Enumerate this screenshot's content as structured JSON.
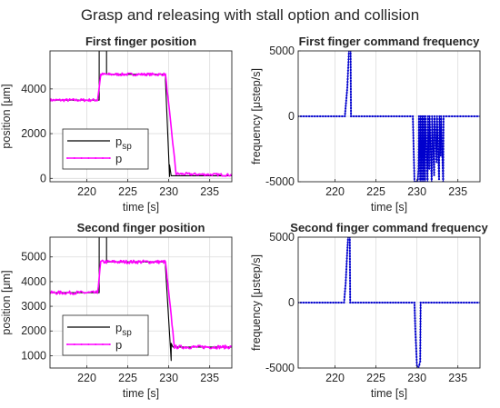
{
  "figure_title": "Grasp and releasing with stall option and collision",
  "chart_data": [
    {
      "id": "p1",
      "type": "line",
      "title": "First finger position",
      "xlabel": "time [s]",
      "ylabel": "position [μm]",
      "xlim": [
        215.5,
        237.7
      ],
      "ylim": [
        -150,
        5700
      ],
      "xticks": [
        220,
        225,
        230,
        235
      ],
      "yticks": [
        0,
        2000,
        4000
      ],
      "grid": true,
      "legend": {
        "position": "lower-left",
        "entries": [
          {
            "label": "p",
            "sub": "sp",
            "color": "#000000",
            "marker": false
          },
          {
            "label": "p",
            "sub": "",
            "color": "#ff00ff",
            "marker": true
          }
        ]
      },
      "series": [
        {
          "name": "psp",
          "color": "#000000",
          "noise": 0,
          "x": [
            215.5,
            221.5,
            221.5,
            222.4,
            222.4,
            229.6,
            229.6,
            230.1,
            230.1,
            230.3,
            237.7
          ],
          "y": [
            3500,
            3500,
            5700,
            5700,
            4650,
            4650,
            4400,
            80,
            600,
            120,
            120
          ]
        },
        {
          "name": "p",
          "color": "#ff00ff",
          "noise": 60,
          "x": [
            215.5,
            221.3,
            221.7,
            222.2,
            229.6,
            230.9,
            231.2,
            237.7
          ],
          "y": [
            3500,
            3500,
            4650,
            4650,
            4650,
            200,
            200,
            150
          ]
        }
      ]
    },
    {
      "id": "f1",
      "type": "line",
      "title": "First finger command frequency",
      "xlabel": "time [s]",
      "ylabel": "frequency [μstep/s]",
      "xlim": [
        215.5,
        237.7
      ],
      "ylim": [
        -5000,
        5000
      ],
      "xticks": [
        220,
        225,
        230,
        235
      ],
      "yticks": [
        -5000,
        0,
        5000
      ],
      "grid": true,
      "series": [
        {
          "name": "frequency",
          "color": "#0000cd",
          "noise": 0,
          "x": [
            215.5,
            221.2,
            221.5,
            221.7,
            221.9,
            221.95,
            229.5,
            229.7,
            229.9,
            230.0,
            230.1,
            230.2,
            230.25,
            230.4,
            230.45,
            230.6,
            230.65,
            230.8,
            230.85,
            231.0,
            231.05,
            231.3,
            231.35,
            231.5,
            231.55,
            231.8,
            231.85,
            232.1,
            232.15,
            232.4,
            232.45,
            232.7,
            232.75,
            232.9,
            232.95,
            233.2,
            233.25,
            237.7
          ],
          "y": [
            0,
            0,
            2200,
            5000,
            5000,
            0,
            0,
            -5000,
            -5000,
            -5000,
            -5000,
            -4000,
            0,
            -5000,
            0,
            -5000,
            0,
            -5000,
            0,
            -5000,
            0,
            -5000,
            0,
            -4000,
            0,
            -5000,
            0,
            -4500,
            0,
            -3500,
            0,
            -4800,
            0,
            -3000,
            0,
            -5000,
            0,
            0
          ]
        }
      ]
    },
    {
      "id": "p2",
      "type": "line",
      "title": "Second finger position",
      "xlabel": "time [s]",
      "ylabel": "position [μm]",
      "xlim": [
        215.5,
        237.7
      ],
      "ylim": [
        500,
        5800
      ],
      "xticks": [
        220,
        225,
        230,
        235
      ],
      "yticks": [
        1000,
        2000,
        3000,
        4000,
        5000
      ],
      "grid": true,
      "legend": {
        "position": "lower-left",
        "entries": [
          {
            "label": "p",
            "sub": "sp",
            "color": "#000000",
            "marker": false
          },
          {
            "label": "p",
            "sub": "",
            "color": "#ff00ff",
            "marker": true
          }
        ]
      },
      "series": [
        {
          "name": "psp",
          "color": "#000000",
          "noise": 0,
          "x": [
            215.5,
            221.5,
            221.5,
            222.4,
            222.4,
            229.6,
            229.6,
            230.3,
            230.3,
            230.5,
            237.7
          ],
          "y": [
            3550,
            3550,
            5800,
            5800,
            4800,
            4800,
            4600,
            800,
            1500,
            1350,
            1350
          ]
        },
        {
          "name": "p",
          "color": "#ff00ff",
          "noise": 70,
          "x": [
            215.5,
            221.3,
            221.7,
            222.2,
            229.6,
            230.7,
            230.9,
            237.7
          ],
          "y": [
            3550,
            3550,
            4800,
            4800,
            4800,
            1350,
            1350,
            1350
          ]
        }
      ]
    },
    {
      "id": "f2",
      "type": "line",
      "title": "Second finger command frequency",
      "xlabel": "time [s]",
      "ylabel": "frequency [μstep/s]",
      "xlim": [
        215.5,
        237.7
      ],
      "ylim": [
        -5000,
        5000
      ],
      "xticks": [
        220,
        225,
        230,
        235
      ],
      "yticks": [
        -5000,
        0,
        5000
      ],
      "grid": true,
      "series": [
        {
          "name": "frequency",
          "color": "#0000cd",
          "noise": 0,
          "x": [
            215.5,
            221.1,
            221.3,
            221.5,
            221.6,
            221.8,
            221.85,
            229.7,
            229.8,
            230.0,
            230.2,
            230.4,
            230.45,
            237.7
          ],
          "y": [
            0,
            0,
            1500,
            4000,
            5000,
            5000,
            0,
            0,
            -2000,
            -4800,
            -5000,
            -4500,
            0,
            0
          ]
        }
      ]
    }
  ]
}
